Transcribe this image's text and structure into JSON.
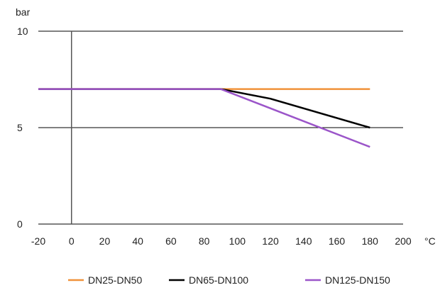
{
  "chart_data": {
    "type": "line",
    "xlabel": "°C",
    "ylabel": "bar",
    "xlim": [
      -20,
      200
    ],
    "ylim": [
      0,
      10
    ],
    "x_ticks": [
      -20,
      0,
      20,
      40,
      60,
      80,
      100,
      120,
      140,
      160,
      180,
      200
    ],
    "y_ticks": [
      0,
      5,
      10
    ],
    "grid": "horizontal",
    "legend_position": "bottom",
    "series": [
      {
        "name": "DN25-DN50",
        "color": "#f0923a",
        "points": [
          [
            -20,
            7
          ],
          [
            90,
            7
          ],
          [
            180,
            7
          ]
        ]
      },
      {
        "name": "DN65-DN100",
        "color": "#000000",
        "points": [
          [
            -20,
            7
          ],
          [
            90,
            7
          ],
          [
            120,
            6.5
          ],
          [
            180,
            5
          ]
        ]
      },
      {
        "name": "DN125-DN150",
        "color": "#9b55c9",
        "points": [
          [
            -20,
            7
          ],
          [
            90,
            7
          ],
          [
            180,
            4
          ]
        ]
      }
    ]
  }
}
